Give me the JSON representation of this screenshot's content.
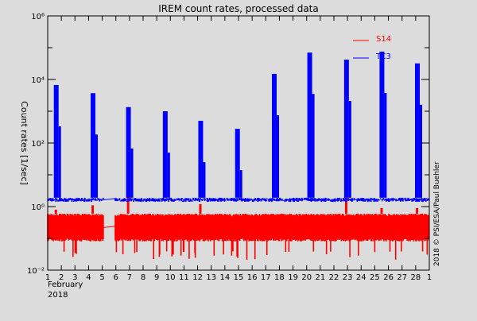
{
  "chart_data": {
    "type": "line",
    "title": "IREM count rates, processed data",
    "ylabel": "Count rates [1/sec]",
    "xlabel": "February",
    "xlabel_year": "2018",
    "yscale": "log",
    "ylim_exp": [
      -2,
      6
    ],
    "ytick_labels": [
      {
        "exp": 6,
        "label": "10⁶"
      },
      {
        "exp": 4,
        "label": "10⁴"
      },
      {
        "exp": 2,
        "label": "10²"
      },
      {
        "exp": 0,
        "label": "10⁰"
      },
      {
        "exp": -2,
        "label": "10⁻²"
      }
    ],
    "xlim": [
      1,
      29
    ],
    "xtick_labels": [
      "1",
      "2",
      "3",
      "4",
      "5",
      "6",
      "7",
      "8",
      "9",
      "10",
      "11",
      "12",
      "13",
      "14",
      "15",
      "16",
      "17",
      "18",
      "19",
      "20",
      "21",
      "22",
      "23",
      "24",
      "25",
      "26",
      "27",
      "28",
      "1"
    ],
    "data_gap_days": [
      5.1,
      5.95
    ],
    "legend": [
      {
        "name": "S14",
        "color": "#ff0000"
      },
      {
        "name": "TC3",
        "color": "#0000ff"
      }
    ],
    "series": [
      {
        "name": "TC3",
        "color": "#0000ff",
        "baseline_range": [
          1.4,
          1.9
        ],
        "peaks": [
          {
            "day": 1.6,
            "value": 6700
          },
          {
            "day": 4.3,
            "value": 3700
          },
          {
            "day": 6.9,
            "value": 1350
          },
          {
            "day": 9.6,
            "value": 1000
          },
          {
            "day": 12.2,
            "value": 500
          },
          {
            "day": 14.9,
            "value": 280
          },
          {
            "day": 17.6,
            "value": 15000
          },
          {
            "day": 20.2,
            "value": 70000
          },
          {
            "day": 22.9,
            "value": 42000
          },
          {
            "day": 25.5,
            "value": 75000
          },
          {
            "day": 28.1,
            "value": 32000
          }
        ]
      },
      {
        "name": "S14",
        "color": "#ff0000",
        "baseline_range": [
          0.08,
          0.6
        ],
        "min_dips": 0.02,
        "spikes": [
          {
            "day": 1.6,
            "value": 0.8
          },
          {
            "day": 4.3,
            "value": 1.1
          },
          {
            "day": 6.9,
            "value": 2.5
          },
          {
            "day": 12.2,
            "value": 1.2
          },
          {
            "day": 22.9,
            "value": 2.5
          },
          {
            "day": 25.5,
            "value": 0.9
          },
          {
            "day": 28.1,
            "value": 0.9
          }
        ]
      }
    ],
    "credit": "2018 © PSI/ESA/Paul Buehler"
  }
}
